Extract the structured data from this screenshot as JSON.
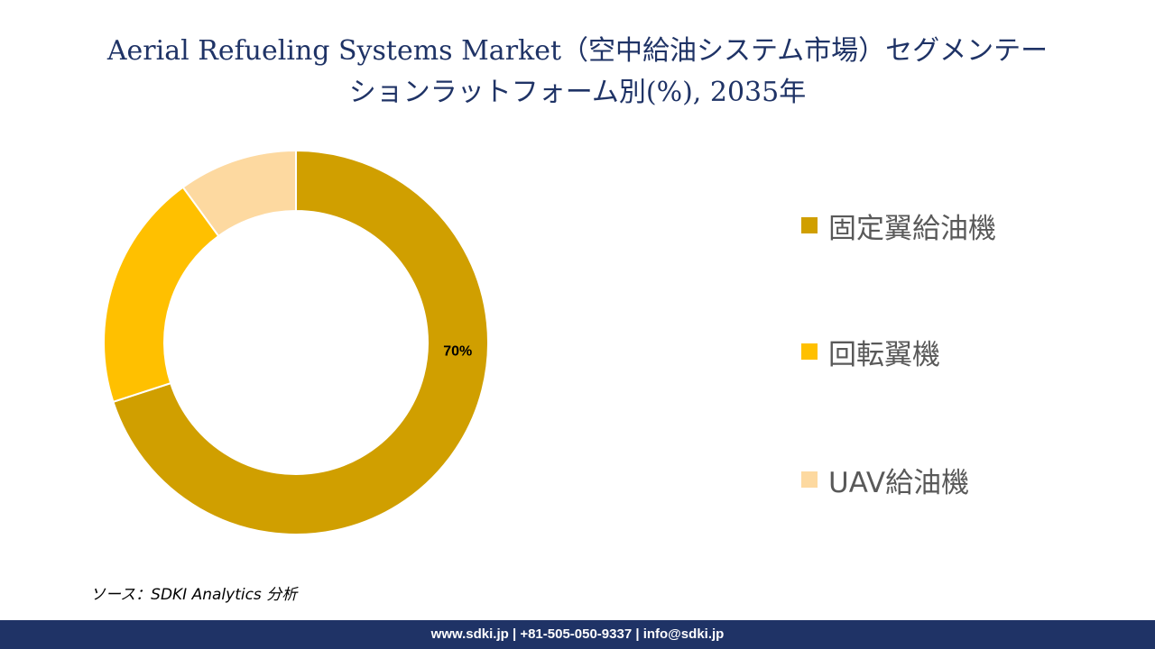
{
  "title": {
    "line1": "Aerial Refueling Systems Market（空中給油システム市場）セグメンテー",
    "line2": "ションラットフォーム別(%), 2035年"
  },
  "chart_data": {
    "type": "pie",
    "donut": true,
    "title": "Aerial Refueling Systems Market（空中給油システム市場）セグメンテーションラットフォーム別(%), 2035年",
    "categories": [
      "固定翼給油機",
      "回転翼機",
      "UAV給油機"
    ],
    "values": [
      70,
      20,
      10
    ],
    "colors": [
      "#d09f00",
      "#ffc000",
      "#fdd9a0"
    ],
    "data_labels": [
      "70%",
      "",
      ""
    ],
    "legend_position": "right"
  },
  "source": "ソース：SDKI Analytics 分析",
  "footer": "www.sdki.jp | +81-505-050-9337 | info@sdki.jp"
}
